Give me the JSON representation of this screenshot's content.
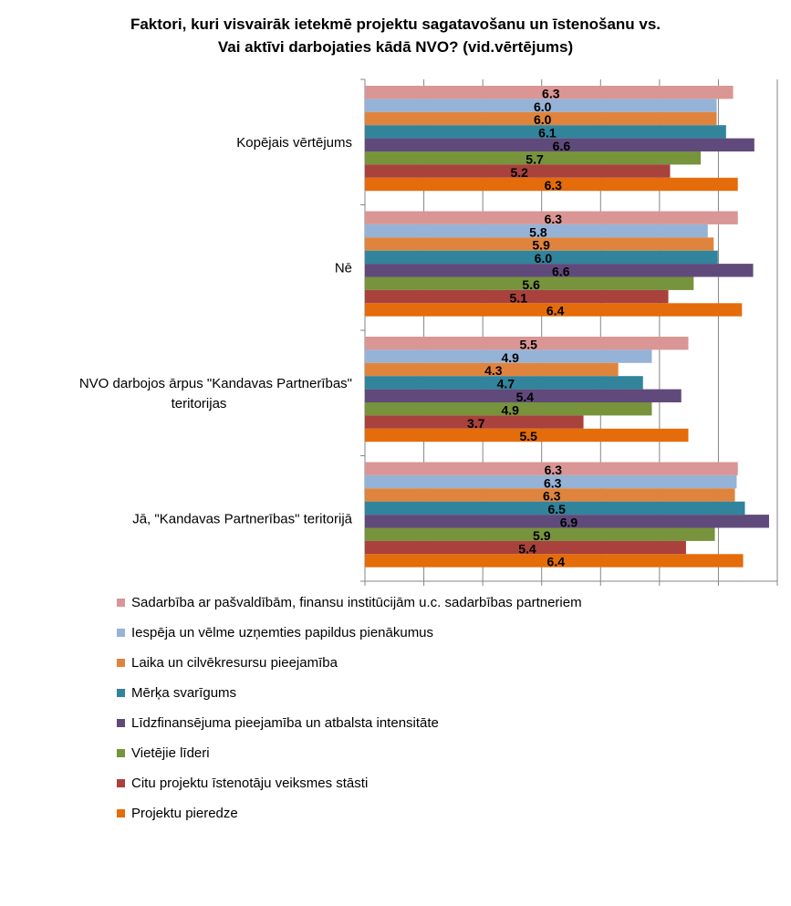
{
  "chart_data": {
    "type": "bar",
    "orientation": "horizontal",
    "title_lines": [
      "Faktori, kuri visvairāk ietekmē projektu sagatavošanu un īstenošanu vs.",
      "Vai aktīvi darbojaties kādā NVO? (vid.vērtējums)"
    ],
    "xlim": [
      0,
      7
    ],
    "xticks": [
      "0.0",
      "1.0",
      "2.0",
      "3.0",
      "4.0",
      "5.0",
      "6.0",
      "7.0"
    ],
    "grid": true,
    "legend_position": "bottom",
    "categories": [
      "Kopējais vērtējums",
      "Nē",
      "NVO darbojos ārpus \"Kandavas Partnerības\" teritorijas",
      "Jā, \"Kandavas Partnerības\" teritorijā"
    ],
    "category_lines": [
      [
        "Kopējais vērtējums"
      ],
      [
        "Nē"
      ],
      [
        "NVO darbojos ārpus \"Kandavas Partnerības\"",
        "teritorijas"
      ],
      [
        "Jā, \"Kandavas Partnerības\" teritorijā"
      ]
    ],
    "series": [
      {
        "name": "Sadarbība ar pašvaldībām,  finansu institūcijām  u.c. sadarbības partneriem",
        "color": "#D99694",
        "values": [
          6.25,
          6.33,
          5.49,
          6.33
        ],
        "labels": [
          "6.3",
          "6.3",
          "5.5",
          "6.3"
        ]
      },
      {
        "name": "Iespēja  un vēlme uzņemties papildus pienākumus",
        "color": "#95B3D7",
        "values": [
          5.97,
          5.82,
          4.87,
          6.31
        ],
        "labels": [
          "6.0",
          "5.8",
          "4.9",
          "6.3"
        ]
      },
      {
        "name": "Laika un cilvēkresursu pieejamība",
        "color": "#E0843D",
        "values": [
          5.97,
          5.92,
          4.3,
          6.28
        ],
        "labels": [
          "6.0",
          "5.9",
          "4.3",
          "6.3"
        ]
      },
      {
        "name": "Mērķa svarīgums",
        "color": "#31849B",
        "values": [
          6.13,
          5.99,
          4.72,
          6.45
        ],
        "labels": [
          "6.1",
          "6.0",
          "4.7",
          "6.5"
        ]
      },
      {
        "name": "Līdzfinansējuma pieejamība un atbalsta intensitāte",
        "color": "#604A7B",
        "values": [
          6.61,
          6.59,
          5.37,
          6.86
        ],
        "labels": [
          "6.6",
          "6.6",
          "5.4",
          "6.9"
        ]
      },
      {
        "name": "Vietējie līderi",
        "color": "#77933C",
        "values": [
          5.7,
          5.58,
          4.87,
          5.94
        ],
        "labels": [
          "5.7",
          "5.6",
          "4.9",
          "5.9"
        ]
      },
      {
        "name": "Citu projektu īstenotāju veiksmes stāsti",
        "color": "#A9413D",
        "values": [
          5.18,
          5.15,
          3.71,
          5.45
        ],
        "labels": [
          "5.2",
          "5.1",
          "3.7",
          "5.4"
        ]
      },
      {
        "name": "Projektu pieredze",
        "color": "#E46C0A",
        "values": [
          6.33,
          6.4,
          5.49,
          6.42
        ],
        "labels": [
          "6.3",
          "6.4",
          "5.5",
          "6.4"
        ]
      }
    ]
  }
}
